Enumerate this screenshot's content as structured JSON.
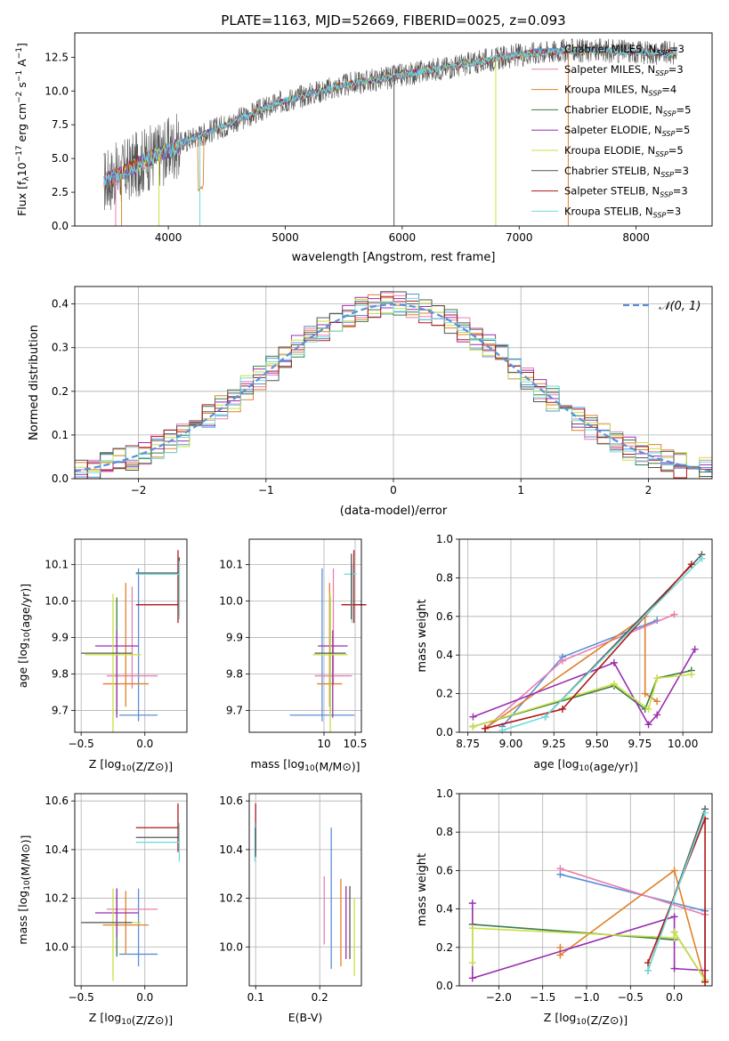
{
  "colors": {
    "chabrier_miles": "#5b8fd9",
    "salpeter_miles": "#e87fb0",
    "kroupa_miles": "#e0812a",
    "chabrier_elodie": "#3a7a4a",
    "salpeter_elodie": "#9a2fb0",
    "kroupa_elodie": "#c8e040",
    "chabrier_stelib": "#555555",
    "salpeter_stelib": "#b01818",
    "kroupa_stelib": "#70dcd8",
    "gauss": "#5b8fd9"
  },
  "legend_series": [
    {
      "label": "Chabrier MILES, N",
      "sub": "SSP",
      "suffix": "=3",
      "color": "chabrier_miles"
    },
    {
      "label": "Salpeter MILES, N",
      "sub": "SSP",
      "suffix": "=3",
      "color": "salpeter_miles"
    },
    {
      "label": "Kroupa MILES, N",
      "sub": "SSP",
      "suffix": "=4",
      "color": "kroupa_miles"
    },
    {
      "label": "Chabrier ELODIE, N",
      "sub": "SSP",
      "suffix": "=5",
      "color": "chabrier_elodie"
    },
    {
      "label": "Salpeter ELODIE, N",
      "sub": "SSP",
      "suffix": "=5",
      "color": "salpeter_elodie"
    },
    {
      "label": "Kroupa ELODIE, N",
      "sub": "SSP",
      "suffix": "=5",
      "color": "kroupa_elodie"
    },
    {
      "label": "Chabrier STELIB, N",
      "sub": "SSP",
      "suffix": "=3",
      "color": "chabrier_stelib"
    },
    {
      "label": "Salpeter STELIB, N",
      "sub": "SSP",
      "suffix": "=3",
      "color": "salpeter_stelib"
    },
    {
      "label": "Kroupa STELIB, N",
      "sub": "SSP",
      "suffix": "=3",
      "color": "kroupa_stelib"
    }
  ],
  "chart_data": [
    {
      "id": "spectrum",
      "type": "line",
      "title": "PLATE=1163, MJD=52669, FIBERID=0025, z=0.093",
      "xlabel": "wavelength [Angstrom, rest frame]",
      "ylabel_parts": [
        "Flux [f",
        "λ",
        "10",
        "−17",
        " erg cm",
        "−2",
        " s",
        "−1",
        " A",
        "−1",
        "]"
      ],
      "xlim": [
        3200,
        8650
      ],
      "ylim": [
        0,
        14.3
      ],
      "xticks": [
        4000,
        5000,
        6000,
        7000,
        8000
      ],
      "xtick_labels": [
        "4000",
        "5000",
        "6000",
        "7000",
        "8000"
      ],
      "yticks": [
        0,
        2.5,
        5,
        7.5,
        10,
        12.5
      ],
      "ytick_labels": [
        "0.0",
        "2.5",
        "5.0",
        "7.5",
        "10.0",
        "12.5"
      ],
      "continuum_x": [
        3450,
        3600,
        3800,
        4000,
        4200,
        4500,
        4800,
        5000,
        5300,
        5600,
        5900,
        6200,
        6500,
        6800,
        7100,
        7400,
        7700,
        8000,
        8350
      ],
      "continuum_y": [
        3.3,
        3.9,
        4.9,
        5.6,
        6.5,
        7.5,
        8.6,
        9.3,
        10.0,
        10.6,
        11.0,
        11.5,
        11.9,
        12.4,
        12.8,
        13.0,
        13.0,
        12.9,
        12.8
      ]
    },
    {
      "id": "residuals",
      "type": "step",
      "xlabel": "(data-model)/error",
      "ylabel": "Normed distribution",
      "xlim": [
        -2.5,
        2.5
      ],
      "ylim": [
        0,
        0.44
      ],
      "xticks": [
        -2,
        -1,
        0,
        1,
        2
      ],
      "xtick_labels": [
        "−2",
        "−1",
        "0",
        "1",
        "2"
      ],
      "yticks": [
        0,
        0.1,
        0.2,
        0.3,
        0.4
      ],
      "ytick_labels": [
        "0.0",
        "0.1",
        "0.2",
        "0.3",
        "0.4"
      ],
      "gauss_label": "𝒩(0, 1)",
      "bin_width": 0.1
    },
    {
      "id": "age_vs_z",
      "type": "errorbar",
      "xlabel": "Z [log10(Z/Z⊙)]",
      "ylabel": "age  [log10(age/yr)]",
      "xlim": [
        -0.55,
        0.33
      ],
      "ylim": [
        9.64,
        10.17
      ],
      "xticks": [
        -0.5,
        0.0
      ],
      "xtick_labels": [
        "−0.5",
        "0.0"
      ],
      "yticks": [
        9.7,
        9.8,
        9.9,
        10.0,
        10.1
      ],
      "ytick_labels": [
        "9.7",
        "9.8",
        "9.9",
        "10.0",
        "10.1"
      ],
      "points": [
        {
          "c": "chabrier_miles",
          "x": -0.05,
          "xe": 0.15,
          "y": 9.687,
          "ye": 0.0
        },
        {
          "c": "chabrier_miles",
          "x": -0.05,
          "xe": 0.0,
          "y": 9.88,
          "ye": 0.21
        },
        {
          "c": "salpeter_miles",
          "x": -0.1,
          "xe": 0.2,
          "y": 9.795,
          "ye": 0.0
        },
        {
          "c": "salpeter_miles",
          "x": -0.1,
          "xe": 0.0,
          "y": 9.9,
          "ye": 0.14
        },
        {
          "c": "kroupa_miles",
          "x": -0.15,
          "xe": 0.18,
          "y": 9.773,
          "ye": 0.0
        },
        {
          "c": "kroupa_miles",
          "x": -0.15,
          "xe": 0.0,
          "y": 9.88,
          "ye": 0.17
        },
        {
          "c": "chabrier_elodie",
          "x": -0.22,
          "xe": 0.0,
          "y": 9.85,
          "ye": 0.16
        },
        {
          "c": "salpeter_elodie",
          "x": -0.22,
          "xe": 0.17,
          "y": 9.877,
          "ye": 0.0
        },
        {
          "c": "salpeter_elodie",
          "x": -0.22,
          "xe": 0.0,
          "y": 9.8,
          "ye": 0.12
        },
        {
          "c": "kroupa_elodie",
          "x": -0.25,
          "xe": 0.22,
          "y": 9.853,
          "ye": 0.0
        },
        {
          "c": "kroupa_elodie",
          "x": -0.25,
          "xe": 0.0,
          "y": 9.83,
          "ye": 0.19
        },
        {
          "c": "chabrier_stelib",
          "x": -0.3,
          "xe": 0.2,
          "y": 9.857,
          "ye": 0.0
        },
        {
          "c": "chabrier_stelib",
          "x": 0.27,
          "xe": 0.0,
          "y": 10.04,
          "ye": 0.08
        },
        {
          "c": "chabrier_stelib",
          "x": 0.1,
          "xe": 0.17,
          "y": 10.077,
          "ye": 0.0
        },
        {
          "c": "salpeter_stelib",
          "x": 0.1,
          "xe": 0.17,
          "y": 9.99,
          "ye": 0.0
        },
        {
          "c": "salpeter_stelib",
          "x": 0.26,
          "xe": 0.0,
          "y": 10.04,
          "ye": 0.1
        },
        {
          "c": "kroupa_stelib",
          "x": 0.1,
          "xe": 0.17,
          "y": 10.074,
          "ye": 0.0
        },
        {
          "c": "kroupa_stelib",
          "x": 0.27,
          "xe": 0.0,
          "y": 10.03,
          "ye": 0.08
        }
      ]
    },
    {
      "id": "age_vs_mass",
      "type": "errorbar",
      "xlabel": "mass [log10(M/M⊙)]",
      "ylabel": "",
      "xlim": [
        8.8,
        10.6
      ],
      "ylim": [
        9.64,
        10.17
      ],
      "xticks": [
        10,
        10.5
      ],
      "xtick_labels": [
        "10",
        "10.5"
      ],
      "yticks": [
        9.7,
        9.8,
        9.9,
        10.0,
        10.1
      ],
      "ytick_labels": [
        "9.7",
        "9.8",
        "9.9",
        "10.0",
        "10.1"
      ],
      "points": [
        {
          "c": "chabrier_miles",
          "x": 9.97,
          "xe": 0.52,
          "y": 9.687,
          "ye": 0.0
        },
        {
          "c": "chabrier_miles",
          "x": 9.97,
          "xe": 0.0,
          "y": 9.88,
          "ye": 0.21
        },
        {
          "c": "salpeter_miles",
          "x": 10.15,
          "xe": 0.3,
          "y": 9.795,
          "ye": 0.0
        },
        {
          "c": "salpeter_miles",
          "x": 10.15,
          "xe": 0.0,
          "y": 9.93,
          "ye": 0.16
        },
        {
          "c": "kroupa_miles",
          "x": 10.09,
          "xe": 0.2,
          "y": 9.773,
          "ye": 0.0
        },
        {
          "c": "kroupa_miles",
          "x": 10.09,
          "xe": 0.0,
          "y": 9.88,
          "ye": 0.17
        },
        {
          "c": "chabrier_elodie",
          "x": 10.1,
          "xe": 0.0,
          "y": 9.85,
          "ye": 0.16
        },
        {
          "c": "salpeter_elodie",
          "x": 10.14,
          "xe": 0.24,
          "y": 9.877,
          "ye": 0.0
        },
        {
          "c": "salpeter_elodie",
          "x": 10.14,
          "xe": 0.0,
          "y": 9.8,
          "ye": 0.12
        },
        {
          "c": "kroupa_elodie",
          "x": 10.1,
          "xe": 0.28,
          "y": 9.853,
          "ye": 0.0
        },
        {
          "c": "kroupa_elodie",
          "x": 10.1,
          "xe": 0.0,
          "y": 9.83,
          "ye": 0.19
        },
        {
          "c": "chabrier_stelib",
          "x": 10.1,
          "xe": 0.25,
          "y": 9.857,
          "ye": 0.0
        },
        {
          "c": "salpeter_stelib",
          "x": 10.48,
          "xe": 0.2,
          "y": 9.99,
          "ye": 0.0
        },
        {
          "c": "salpeter_stelib",
          "x": 10.48,
          "xe": 0.0,
          "y": 10.04,
          "ye": 0.1
        },
        {
          "c": "kroupa_stelib",
          "x": 10.42,
          "xe": 0.1,
          "y": 10.074,
          "ye": 0.0
        },
        {
          "c": "kroupa_stelib",
          "x": 10.45,
          "xe": 0.0,
          "y": 10.02,
          "ye": 0.08
        },
        {
          "c": "chabrier_stelib",
          "x": 10.44,
          "xe": 0.0,
          "y": 10.04,
          "ye": 0.09
        }
      ]
    },
    {
      "id": "weight_vs_age",
      "type": "line",
      "xlabel": "age  [log10(age/yr)]",
      "ylabel": "mass weight",
      "xlim": [
        8.7,
        10.17
      ],
      "ylim": [
        0,
        1
      ],
      "xticks": [
        8.75,
        9.0,
        9.25,
        9.5,
        9.75,
        10.0
      ],
      "xtick_labels": [
        "8.75",
        "9.00",
        "9.25",
        "9.50",
        "9.75",
        "10.00"
      ],
      "yticks": [
        0,
        0.2,
        0.4,
        0.6,
        0.8,
        1.0
      ],
      "ytick_labels": [
        "0.0",
        "0.2",
        "0.4",
        "0.6",
        "0.8",
        "1.0"
      ],
      "series": [
        {
          "c": "chabrier_miles",
          "x": [
            8.95,
            9.3,
            9.85
          ],
          "y": [
            0.03,
            0.39,
            0.58
          ]
        },
        {
          "c": "salpeter_miles",
          "x": [
            8.85,
            9.3,
            9.95
          ],
          "y": [
            0.02,
            0.37,
            0.61
          ]
        },
        {
          "c": "kroupa_miles",
          "x": [
            8.85,
            9.78,
            9.78,
            9.85
          ],
          "y": [
            0.02,
            0.6,
            0.2,
            0.16
          ]
        },
        {
          "c": "chabrier_elodie",
          "x": [
            8.78,
            9.6,
            9.78,
            9.85,
            10.05
          ],
          "y": [
            0.03,
            0.24,
            0.12,
            0.28,
            0.32
          ]
        },
        {
          "c": "salpeter_elodie",
          "x": [
            8.78,
            9.6,
            9.8,
            9.85,
            10.07
          ],
          "y": [
            0.08,
            0.36,
            0.04,
            0.09,
            0.43
          ]
        },
        {
          "c": "kroupa_elodie",
          "x": [
            8.78,
            9.6,
            9.8,
            9.85,
            10.05
          ],
          "y": [
            0.03,
            0.25,
            0.12,
            0.28,
            0.3
          ]
        },
        {
          "c": "chabrier_stelib",
          "x": [
            9.2,
            10.11
          ],
          "y": [
            0.08,
            0.92
          ]
        },
        {
          "c": "salpeter_stelib",
          "x": [
            8.85,
            9.3,
            10.05
          ],
          "y": [
            0.02,
            0.12,
            0.87
          ]
        },
        {
          "c": "kroupa_stelib",
          "x": [
            8.95,
            9.2,
            10.11
          ],
          "y": [
            0.01,
            0.08,
            0.9
          ]
        }
      ]
    },
    {
      "id": "mass_vs_z",
      "type": "errorbar",
      "xlabel": "Z [log10(Z/Z⊙)]",
      "ylabel": "mass [log10(M/M⊙)]",
      "xlim": [
        -0.55,
        0.33
      ],
      "ylim": [
        9.84,
        10.63
      ],
      "xticks": [
        -0.5,
        0.0
      ],
      "xtick_labels": [
        "−0.5",
        "0.0"
      ],
      "yticks": [
        10.0,
        10.2,
        10.4,
        10.6
      ],
      "ytick_labels": [
        "10.0",
        "10.2",
        "10.4",
        "10.6"
      ],
      "points": [
        {
          "c": "chabrier_miles",
          "x": -0.05,
          "xe": 0.15,
          "y": 9.97,
          "ye": 0.0
        },
        {
          "c": "chabrier_miles",
          "x": -0.05,
          "xe": 0.0,
          "y": 10.08,
          "ye": 0.16
        },
        {
          "c": "salpeter_miles",
          "x": -0.1,
          "xe": 0.2,
          "y": 10.155,
          "ye": 0.0
        },
        {
          "c": "kroupa_miles",
          "x": -0.15,
          "xe": 0.18,
          "y": 10.09,
          "ye": 0.0
        },
        {
          "c": "kroupa_miles",
          "x": -0.15,
          "xe": 0.0,
          "y": 10.1,
          "ye": 0.13
        },
        {
          "c": "chabrier_elodie",
          "x": -0.22,
          "xe": 0.0,
          "y": 10.1,
          "ye": 0.14
        },
        {
          "c": "salpeter_elodie",
          "x": -0.22,
          "xe": 0.17,
          "y": 10.14,
          "ye": 0.0
        },
        {
          "c": "salpeter_elodie",
          "x": -0.22,
          "xe": 0.0,
          "y": 10.14,
          "ye": 0.1
        },
        {
          "c": "kroupa_elodie",
          "x": -0.25,
          "xe": 0.22,
          "y": 10.1,
          "ye": 0.0
        },
        {
          "c": "kroupa_elodie",
          "x": -0.25,
          "xe": 0.0,
          "y": 10.05,
          "ye": 0.19
        },
        {
          "c": "chabrier_stelib",
          "x": -0.3,
          "xe": 0.2,
          "y": 10.1,
          "ye": 0.0
        },
        {
          "c": "chabrier_stelib",
          "x": 0.1,
          "xe": 0.17,
          "y": 10.45,
          "ye": 0.0
        },
        {
          "c": "salpeter_stelib",
          "x": 0.1,
          "xe": 0.17,
          "y": 10.49,
          "ye": 0.0
        },
        {
          "c": "salpeter_stelib",
          "x": 0.26,
          "xe": 0.0,
          "y": 10.49,
          "ye": 0.1
        },
        {
          "c": "kroupa_stelib",
          "x": 0.1,
          "xe": 0.17,
          "y": 10.43,
          "ye": 0.0
        },
        {
          "c": "kroupa_stelib",
          "x": 0.27,
          "xe": 0.0,
          "y": 10.43,
          "ye": 0.08
        }
      ]
    },
    {
      "id": "mass_vs_ebv",
      "type": "errorbar",
      "xlabel": "E(B-V)",
      "ylabel": "",
      "xlim": [
        0.09,
        0.265
      ],
      "ylim": [
        9.84,
        10.63
      ],
      "xticks": [
        0.1,
        0.2
      ],
      "xtick_labels": [
        "0.1",
        "0.2"
      ],
      "yticks": [
        10.0,
        10.2,
        10.4,
        10.6
      ],
      "ytick_labels": [
        "10.0",
        "10.2",
        "10.4",
        "10.6"
      ],
      "points": [
        {
          "c": "salpeter_stelib",
          "x": 0.1,
          "xe": 0.0,
          "y": 10.49,
          "ye": 0.1
        },
        {
          "c": "kroupa_stelib",
          "x": 0.099,
          "xe": 0.0,
          "y": 10.43,
          "ye": 0.08
        },
        {
          "c": "chabrier_stelib",
          "x": 0.1,
          "xe": 0.0,
          "y": 10.43,
          "ye": 0.06
        },
        {
          "c": "salpeter_miles",
          "x": 0.207,
          "xe": 0.0,
          "y": 10.15,
          "ye": 0.14
        },
        {
          "c": "chabrier_miles",
          "x": 0.218,
          "xe": 0.0,
          "y": 10.2,
          "ye": 0.29
        },
        {
          "c": "kroupa_miles",
          "x": 0.233,
          "xe": 0.0,
          "y": 10.1,
          "ye": 0.18
        },
        {
          "c": "salpeter_elodie",
          "x": 0.241,
          "xe": 0.0,
          "y": 10.1,
          "ye": 0.15
        },
        {
          "c": "chabrier_stelib",
          "x": 0.247,
          "xe": 0.0,
          "y": 10.1,
          "ye": 0.15
        },
        {
          "c": "kroupa_elodie",
          "x": 0.254,
          "xe": 0.0,
          "y": 10.04,
          "ye": 0.16
        }
      ]
    },
    {
      "id": "weight_vs_z",
      "type": "line",
      "xlabel": "Z [log10(Z/Z⊙)]",
      "ylabel": "mass weight",
      "xlim": [
        -2.45,
        0.43
      ],
      "ylim": [
        0,
        1
      ],
      "xticks": [
        -2.0,
        -1.5,
        -1.0,
        -0.5,
        0.0
      ],
      "xtick_labels": [
        "−2.0",
        "−1.5",
        "−1.0",
        "−0.5",
        "0.0"
      ],
      "yticks": [
        0,
        0.2,
        0.4,
        0.6,
        0.8,
        1.0
      ],
      "ytick_labels": [
        "0.0",
        "0.2",
        "0.4",
        "0.6",
        "0.8",
        "1.0"
      ],
      "series": [
        {
          "c": "chabrier_miles",
          "x": [
            -1.3,
            0.35,
            0.35
          ],
          "y": [
            0.58,
            0.39,
            0.03
          ]
        },
        {
          "c": "salpeter_miles",
          "x": [
            -1.3,
            0.35,
            0.35
          ],
          "y": [
            0.61,
            0.37,
            0.02
          ]
        },
        {
          "c": "kroupa_miles",
          "x": [
            -1.3,
            -1.3,
            0.0,
            0.35
          ],
          "y": [
            0.2,
            0.16,
            0.6,
            0.02
          ]
        },
        {
          "c": "chabrier_elodie",
          "x": [
            -2.3,
            0.0,
            0.0,
            0.35
          ],
          "y": [
            0.32,
            0.24,
            0.28,
            0.03
          ]
        },
        {
          "c": "salpeter_elodie",
          "x": [
            -2.3,
            -2.3,
            0.0,
            0.0,
            0.35
          ],
          "y": [
            0.43,
            0.04,
            0.36,
            0.09,
            0.08
          ]
        },
        {
          "c": "kroupa_elodie",
          "x": [
            -2.3,
            -2.3,
            0.0,
            0.0,
            0.35
          ],
          "y": [
            0.12,
            0.3,
            0.25,
            0.28,
            0.03
          ]
        },
        {
          "c": "chabrier_stelib",
          "x": [
            -0.3,
            0.35
          ],
          "y": [
            0.08,
            0.92
          ]
        },
        {
          "c": "salpeter_stelib",
          "x": [
            -0.3,
            0.35,
            0.35
          ],
          "y": [
            0.12,
            0.87,
            0.02
          ]
        },
        {
          "c": "kroupa_stelib",
          "x": [
            -0.3,
            0.35
          ],
          "y": [
            0.08,
            0.9
          ]
        }
      ]
    }
  ]
}
